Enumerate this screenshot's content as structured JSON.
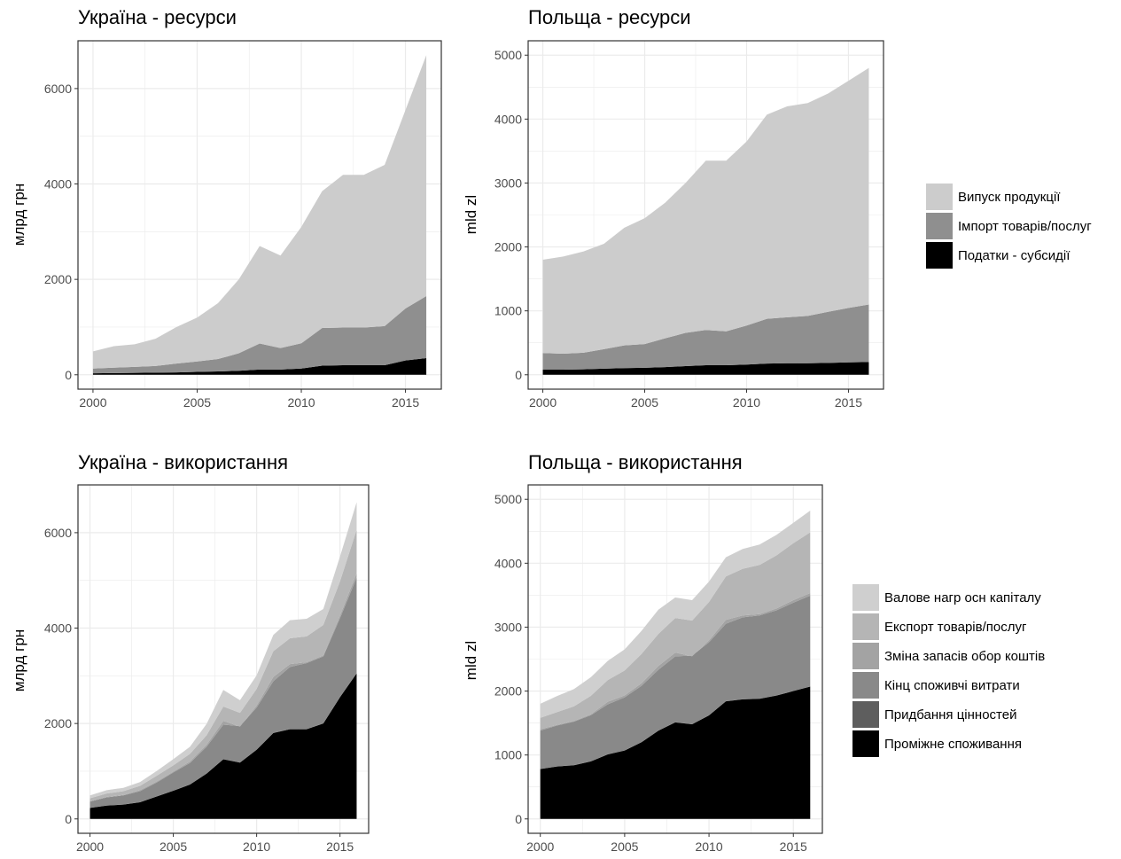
{
  "palette": {
    "output": "#cccccc",
    "imports": "#8f8f8f",
    "taxes": "#000000",
    "gfcf": "#cfcfcf",
    "exports": "#b5b5b5",
    "inventories": "#a3a3a3",
    "final_consumption": "#898989",
    "valuables": "#5e5e5e",
    "intermediate": "#000000",
    "grid": "#ebebeb",
    "frame": "#333333"
  },
  "legend_resources": [
    {
      "label": "Випуск продукції",
      "color": "#cccccc"
    },
    {
      "label": "Імпорт товарів/послуг",
      "color": "#8f8f8f"
    },
    {
      "label": "Податки - субсидії",
      "color": "#000000"
    }
  ],
  "legend_uses": [
    {
      "label": "Валове нагр осн капіталу",
      "color": "#cfcfcf"
    },
    {
      "label": "Експорт товарів/послуг",
      "color": "#b5b5b5"
    },
    {
      "label": "Зміна запасів обор коштів",
      "color": "#a3a3a3"
    },
    {
      "label": "Кінц споживчі витрати",
      "color": "#898989"
    },
    {
      "label": "Придбання цінностей",
      "color": "#5e5e5e"
    },
    {
      "label": "Проміжне споживання",
      "color": "#000000"
    }
  ],
  "chart_data": [
    {
      "type": "area",
      "stacked": true,
      "title": "Україна - ресурси",
      "ylabel": "млрд грн",
      "xlabel": "",
      "xlim": [
        2000,
        2016
      ],
      "ylim": [
        0,
        6700
      ],
      "xticks": [
        2000,
        2005,
        2010,
        2015
      ],
      "yticks": [
        0,
        2000,
        4000,
        6000
      ],
      "x": [
        2000,
        2001,
        2002,
        2003,
        2004,
        2005,
        2006,
        2007,
        2008,
        2009,
        2010,
        2011,
        2012,
        2013,
        2014,
        2015,
        2016
      ],
      "series": [
        {
          "key": "taxes",
          "color": "#000000",
          "values": [
            30,
            35,
            40,
            45,
            50,
            60,
            70,
            85,
            110,
            110,
            130,
            190,
            200,
            200,
            200,
            300,
            350
          ]
        },
        {
          "key": "imports",
          "color": "#8f8f8f",
          "values": [
            100,
            115,
            125,
            140,
            185,
            220,
            260,
            365,
            545,
            450,
            530,
            790,
            790,
            790,
            820,
            1090,
            1300
          ]
        },
        {
          "key": "output",
          "color": "#cccccc",
          "values": [
            360,
            450,
            475,
            570,
            765,
            920,
            1170,
            1550,
            2045,
            1940,
            2440,
            2870,
            3200,
            3200,
            3380,
            4160,
            5050
          ]
        }
      ]
    },
    {
      "type": "area",
      "stacked": true,
      "title": "Польща - ресурси",
      "ylabel": "mld zl",
      "xlabel": "",
      "xlim": [
        2000,
        2016
      ],
      "ylim": [
        0,
        5000
      ],
      "xticks": [
        2000,
        2005,
        2010,
        2015
      ],
      "yticks": [
        0,
        1000,
        2000,
        3000,
        4000,
        5000
      ],
      "x": [
        2000,
        2001,
        2002,
        2003,
        2004,
        2005,
        2006,
        2007,
        2008,
        2009,
        2010,
        2011,
        2012,
        2013,
        2014,
        2015,
        2016
      ],
      "series": [
        {
          "key": "taxes",
          "color": "#000000",
          "values": [
            80,
            80,
            85,
            95,
            105,
            110,
            120,
            135,
            150,
            150,
            160,
            175,
            180,
            180,
            185,
            195,
            200
          ]
        },
        {
          "key": "imports",
          "color": "#8f8f8f",
          "values": [
            260,
            250,
            260,
            305,
            355,
            370,
            450,
            520,
            550,
            530,
            610,
            700,
            720,
            740,
            800,
            850,
            900
          ]
        },
        {
          "key": "output",
          "color": "#cccccc",
          "values": [
            1460,
            1520,
            1585,
            1650,
            1840,
            1970,
            2120,
            2345,
            2650,
            2670,
            2880,
            3195,
            3300,
            3330,
            3415,
            3555,
            3700
          ]
        }
      ]
    },
    {
      "type": "area",
      "stacked": true,
      "title": "Україна - використання",
      "ylabel": "млрд грн",
      "xlabel": "",
      "xlim": [
        2000,
        2016
      ],
      "ylim": [
        0,
        6700
      ],
      "xticks": [
        2000,
        2005,
        2010,
        2015
      ],
      "yticks": [
        0,
        2000,
        4000,
        6000
      ],
      "x": [
        2000,
        2001,
        2002,
        2003,
        2004,
        2005,
        2006,
        2007,
        2008,
        2009,
        2010,
        2011,
        2012,
        2013,
        2014,
        2015,
        2016
      ],
      "series": [
        {
          "key": "intermediate",
          "color": "#000000",
          "values": [
            230,
            280,
            300,
            350,
            470,
            590,
            720,
            950,
            1250,
            1180,
            1450,
            1800,
            1880,
            1880,
            2000,
            2550,
            3050
          ]
        },
        {
          "key": "valuables",
          "color": "#5e5e5e",
          "values": [
            2,
            2,
            2,
            2,
            3,
            3,
            3,
            4,
            5,
            4,
            5,
            6,
            6,
            6,
            6,
            8,
            10
          ]
        },
        {
          "key": "final_consumption",
          "color": "#898989",
          "values": [
            130,
            170,
            190,
            230,
            290,
            380,
            450,
            560,
            720,
            760,
            880,
            1080,
            1300,
            1380,
            1400,
            1650,
            2000
          ]
        },
        {
          "key": "inventories",
          "color": "#a3a3a3",
          "values": [
            10,
            10,
            10,
            20,
            20,
            20,
            30,
            40,
            80,
            -10,
            40,
            90,
            60,
            20,
            20,
            50,
            90
          ]
        },
        {
          "key": "exports",
          "color": "#b5b5b5",
          "values": [
            60,
            70,
            80,
            90,
            120,
            130,
            160,
            200,
            300,
            290,
            350,
            540,
            540,
            540,
            640,
            720,
            910
          ]
        },
        {
          "key": "gfcf",
          "color": "#cfcfcf",
          "values": [
            60,
            70,
            70,
            80,
            100,
            130,
            150,
            240,
            350,
            265,
            285,
            340,
            380,
            370,
            335,
            520,
            580
          ]
        }
      ]
    },
    {
      "type": "area",
      "stacked": true,
      "title": "Польща - використання",
      "ylabel": "mld zl",
      "xlabel": "",
      "xlim": [
        2000,
        2016
      ],
      "ylim": [
        0,
        5000
      ],
      "xticks": [
        2000,
        2005,
        2010,
        2015
      ],
      "yticks": [
        0,
        1000,
        2000,
        3000,
        4000,
        5000
      ],
      "x": [
        2000,
        2001,
        2002,
        2003,
        2004,
        2005,
        2006,
        2007,
        2008,
        2009,
        2010,
        2011,
        2012,
        2013,
        2014,
        2015,
        2016
      ],
      "series": [
        {
          "key": "intermediate",
          "color": "#000000",
          "values": [
            780,
            820,
            840,
            900,
            1010,
            1070,
            1200,
            1380,
            1510,
            1480,
            1620,
            1840,
            1870,
            1880,
            1930,
            2000,
            2070
          ]
        },
        {
          "key": "valuables",
          "color": "#5e5e5e",
          "values": [
            2,
            2,
            2,
            2,
            2,
            2,
            2,
            3,
            3,
            3,
            3,
            3,
            3,
            3,
            3,
            3,
            3
          ]
        },
        {
          "key": "final_consumption",
          "color": "#898989",
          "values": [
            600,
            640,
            680,
            720,
            780,
            830,
            880,
            950,
            1030,
            1070,
            1140,
            1210,
            1280,
            1300,
            1330,
            1380,
            1420
          ]
        },
        {
          "key": "inventories",
          "color": "#a3a3a3",
          "values": [
            20,
            10,
            10,
            15,
            40,
            30,
            40,
            60,
            60,
            -10,
            30,
            60,
            30,
            20,
            30,
            40,
            40
          ]
        },
        {
          "key": "exports",
          "color": "#b5b5b5",
          "values": [
            180,
            200,
            230,
            290,
            340,
            390,
            460,
            500,
            540,
            560,
            600,
            680,
            730,
            770,
            830,
            890,
            950
          ]
        },
        {
          "key": "gfcf",
          "color": "#cfcfcf",
          "values": [
            220,
            250,
            270,
            290,
            300,
            330,
            360,
            380,
            320,
            320,
            320,
            300,
            310,
            320,
            320,
            320,
            340
          ]
        }
      ]
    }
  ]
}
